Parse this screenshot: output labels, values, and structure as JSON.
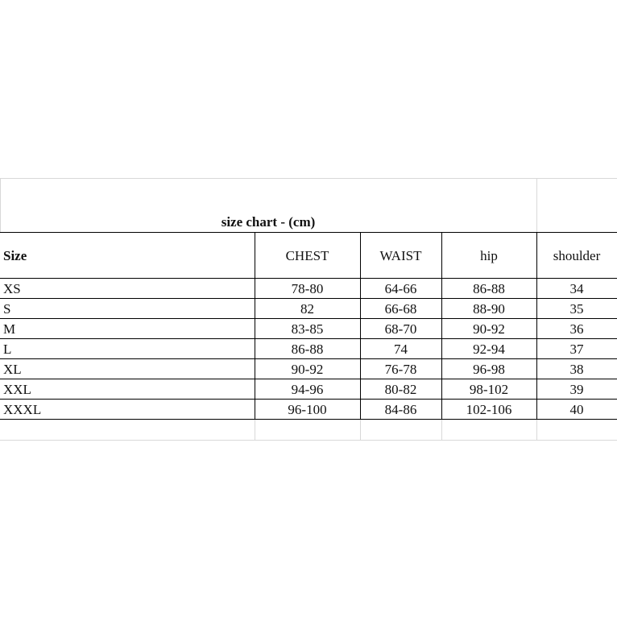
{
  "title": "size chart - (cm)",
  "headers": [
    "Size",
    "CHEST",
    "WAIST",
    "hip",
    "shoulder"
  ],
  "rows": [
    [
      "XS",
      "78-80",
      "64-66",
      "86-88",
      "34"
    ],
    [
      "S",
      "82",
      "66-68",
      "88-90",
      "35"
    ],
    [
      "M",
      "83-85",
      "68-70",
      "90-92",
      "36"
    ],
    [
      "L",
      "86-88",
      "74",
      "92-94",
      "37"
    ],
    [
      "XL",
      "90-92",
      "76-78",
      "96-98",
      "38"
    ],
    [
      "XXL",
      "94-96",
      "80-82",
      "98-102",
      "39"
    ],
    [
      "XXXL",
      "96-100",
      "84-86",
      "102-106",
      "40"
    ]
  ]
}
